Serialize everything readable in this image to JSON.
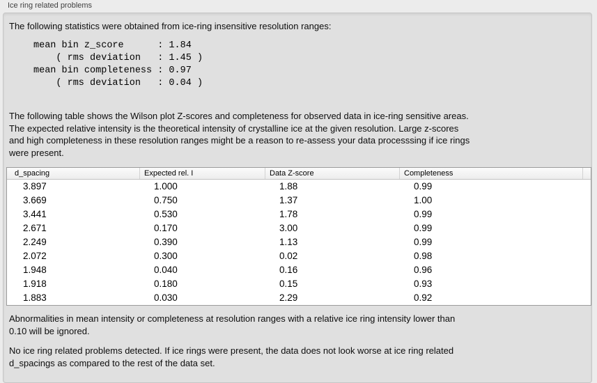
{
  "group_box": {
    "label": "Ice ring related problems"
  },
  "colors": {
    "outer_background": "#ececec",
    "panel_background": "#e0e0e0",
    "table_background": "#ffffff"
  },
  "panel": {
    "intro": "The following statistics were obtained from ice-ring insensitive resolution ranges:",
    "stats": {
      "mean_bin_z_score": "1.84",
      "z_score_rms_deviation": "1.45",
      "mean_bin_completeness": "0.97",
      "completeness_rms_deviation": "0.04",
      "lines": [
        "mean bin z_score      : 1.84",
        "    ( rms deviation   : 1.45 )",
        "mean bin completeness : 0.97",
        "    ( rms deviation   : 0.04 )"
      ]
    },
    "description_lines": [
      "The following table shows the Wilson plot Z-scores and completeness for observed data in ice-ring sensitive areas.",
      "The expected relative intensity is the theoretical intensity of crystalline ice at the given resolution. Large z-scores",
      "and high completeness in these resolution ranges might be a reason to re-assess your data processsing if ice rings",
      "were present."
    ],
    "table": {
      "columns": [
        "d_spacing",
        "Expected rel. I",
        "Data Z-score",
        "Completeness"
      ],
      "rows": [
        [
          "3.897",
          "1.000",
          "1.88",
          "0.99"
        ],
        [
          "3.669",
          "0.750",
          "1.37",
          "1.00"
        ],
        [
          "3.441",
          "0.530",
          "1.78",
          "0.99"
        ],
        [
          "2.671",
          "0.170",
          "3.00",
          "0.99"
        ],
        [
          "2.249",
          "0.390",
          "1.13",
          "0.99"
        ],
        [
          "2.072",
          "0.300",
          "0.02",
          "0.98"
        ],
        [
          "1.948",
          "0.040",
          "0.16",
          "0.96"
        ],
        [
          "1.918",
          "0.180",
          "0.15",
          "0.93"
        ],
        [
          "1.883",
          "0.030",
          "2.29",
          "0.92"
        ]
      ]
    },
    "note_lines": [
      "Abnormalities in mean intensity or completeness at resolution ranges with a relative ice ring intensity lower than",
      "0.10 will be ignored."
    ],
    "conclusion_lines": [
      "No ice ring related problems detected. If ice rings were present, the data does not look worse at ice ring related",
      "d_spacings as compared to the rest of the data set."
    ]
  }
}
